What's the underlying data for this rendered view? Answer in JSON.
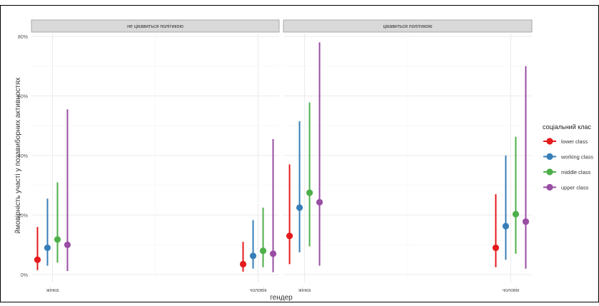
{
  "chart_data": {
    "type": "errorbar-point",
    "ylabel": "ймовірність участі у позавиборних активностях",
    "xlabel": "гендер",
    "y_ticks": [
      "0%",
      "20%",
      "40%",
      "60%",
      "80%"
    ],
    "ylim": [
      0,
      0.8
    ],
    "grid": true,
    "legend_title": "соціальний клас",
    "legend_position": "right",
    "categories": [
      "жінка",
      "чоловік"
    ],
    "panels": [
      {
        "title": "не цікавиться політикою",
        "series": [
          {
            "name": "lower class",
            "color": "#e41a1c",
            "values": [
              0.05,
              0.035
            ],
            "lower": [
              0.015,
              0.01
            ],
            "upper": [
              0.16,
              0.11
            ]
          },
          {
            "name": "working class",
            "color": "#377eb8",
            "values": [
              0.09,
              0.063
            ],
            "lower": [
              0.03,
              0.02
            ],
            "upper": [
              0.255,
              0.183
            ]
          },
          {
            "name": "middle class",
            "color": "#4daf4a",
            "values": [
              0.118,
              0.08
            ],
            "lower": [
              0.04,
              0.025
            ],
            "upper": [
              0.31,
              0.225
            ]
          },
          {
            "name": "upper class",
            "color": "#984ea3",
            "values": [
              0.1,
              0.07
            ],
            "lower": [
              0.012,
              0.008
            ],
            "upper": [
              0.555,
              0.455
            ]
          }
        ]
      },
      {
        "title": "цікавиться політикою",
        "series": [
          {
            "name": "lower class",
            "color": "#e41a1c",
            "values": [
              0.13,
              0.09
            ],
            "lower": [
              0.035,
              0.025
            ],
            "upper": [
              0.37,
              0.27
            ]
          },
          {
            "name": "working class",
            "color": "#377eb8",
            "values": [
              0.225,
              0.163
            ],
            "lower": [
              0.075,
              0.05
            ],
            "upper": [
              0.515,
              0.4
            ]
          },
          {
            "name": "middle class",
            "color": "#4daf4a",
            "values": [
              0.275,
              0.203
            ],
            "lower": [
              0.095,
              0.07
            ],
            "upper": [
              0.578,
              0.463
            ]
          },
          {
            "name": "upper class",
            "color": "#984ea3",
            "values": [
              0.243,
              0.178
            ],
            "lower": [
              0.03,
              0.02
            ],
            "upper": [
              0.78,
              0.7
            ]
          }
        ]
      }
    ]
  }
}
